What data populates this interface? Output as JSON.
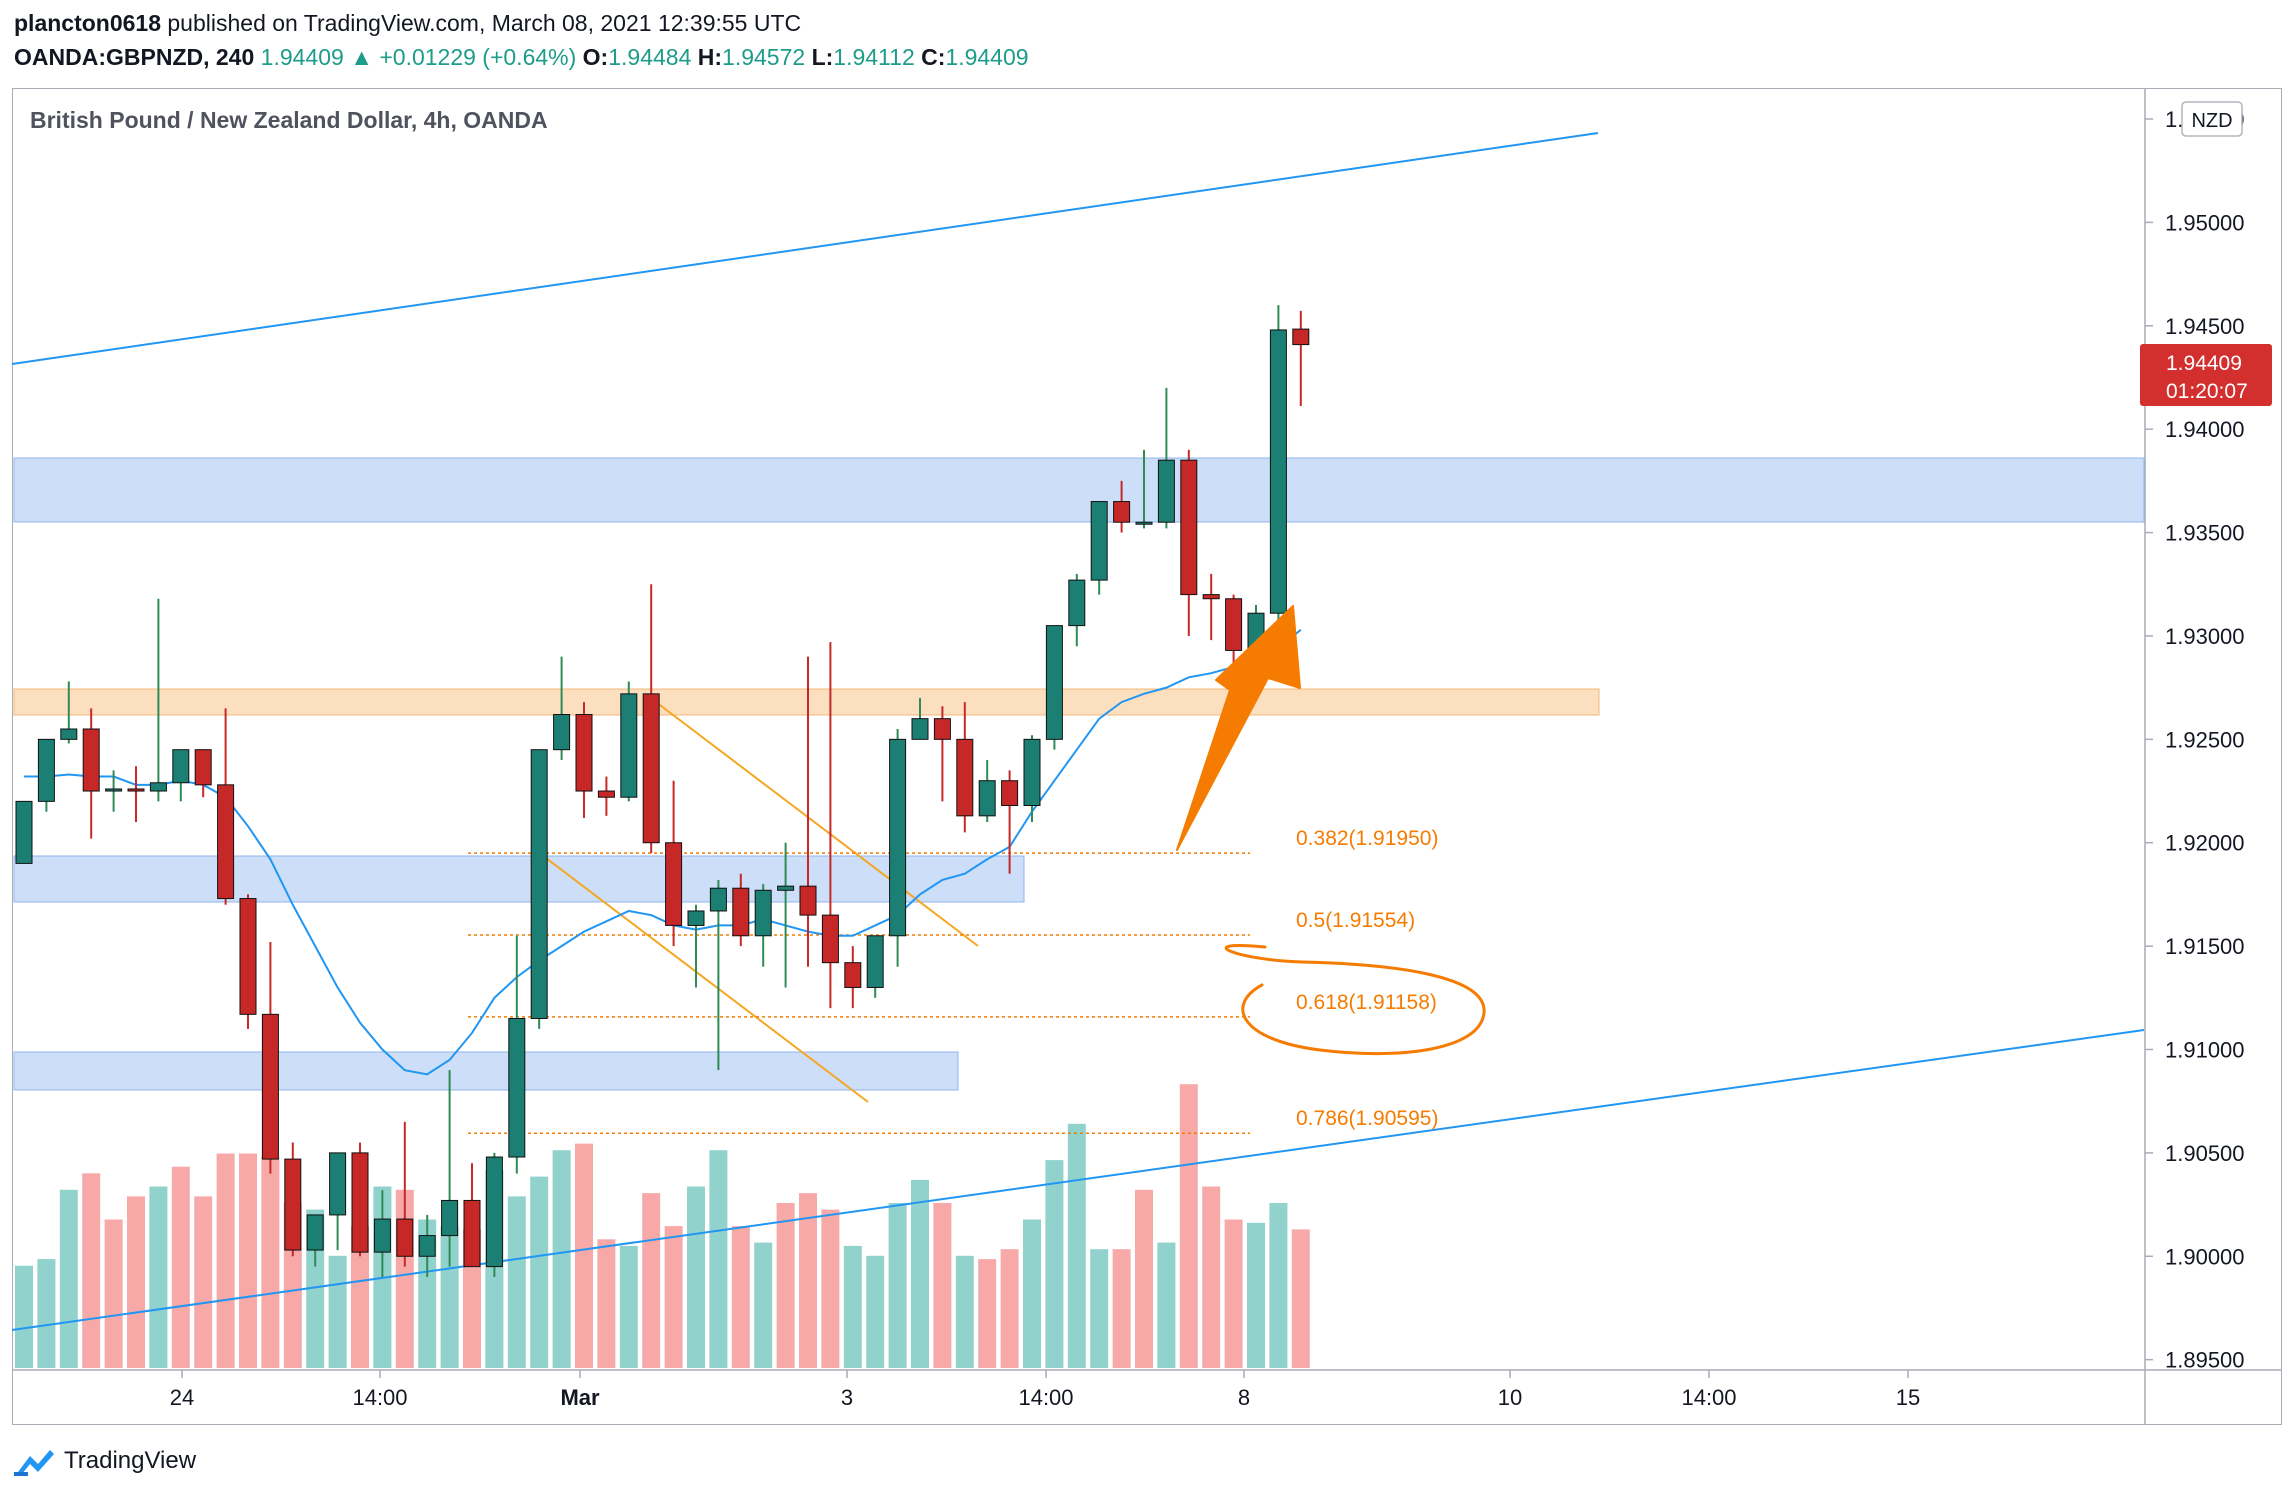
{
  "header": {
    "author": "plancton0618",
    "published_text": "published on TradingView.com, March 08, 2021 12:39:55 UTC",
    "symbol": "OANDA:GBPNZD, 240",
    "last": "1.94409",
    "change": "+0.01229 (+0.64%)",
    "o_label": "O:",
    "o_val": "1.94484",
    "h_label": "H:",
    "h_val": "1.94572",
    "l_label": "L:",
    "l_val": "1.94112",
    "c_label": "C:",
    "c_val": "1.94409"
  },
  "chart": {
    "title": "British Pound / New Zealand Dollar, 4h, OANDA",
    "currency": "NZD",
    "price_tag": "1.94409",
    "countdown": "01:20:07",
    "x_ticks": [
      "24",
      "14:00",
      "Mar",
      "3",
      "14:00",
      "8",
      "10",
      "14:00",
      "15"
    ],
    "fib_labels": [
      "0.382(1.91950)",
      "0.5(1.91554)",
      "0.618(1.91158)",
      "0.786(1.90595)"
    ],
    "colors": {
      "up": "#26a69a",
      "down": "#ef5350",
      "ma": "#2196f3",
      "fib": "#f57c00",
      "zone_blue": "#bbd3f5",
      "zone_orange": "#fcd9b4",
      "arrow": "#f57c00"
    }
  },
  "footer": {
    "brand": "TradingView"
  },
  "chart_data": {
    "type": "candlestick",
    "title": "British Pound / New Zealand Dollar, 4h, OANDA",
    "ylim": [
      1.8945,
      1.9565
    ],
    "y_ticks": [
      1.895,
      1.9,
      1.905,
      1.91,
      1.915,
      1.92,
      1.925,
      1.93,
      1.935,
      1.94,
      1.945,
      1.95,
      1.955
    ],
    "candles": [
      {
        "o": 1.919,
        "h": 1.922,
        "l": 1.919,
        "c": 1.922
      },
      {
        "o": 1.922,
        "h": 1.925,
        "l": 1.9215,
        "c": 1.925
      },
      {
        "o": 1.925,
        "h": 1.9278,
        "l": 1.9248,
        "c": 1.9255
      },
      {
        "o": 1.9255,
        "h": 1.9265,
        "l": 1.9202,
        "c": 1.9225
      },
      {
        "o": 1.9225,
        "h": 1.9235,
        "l": 1.9215,
        "c": 1.9226
      },
      {
        "o": 1.9226,
        "h": 1.9237,
        "l": 1.921,
        "c": 1.9225
      },
      {
        "o": 1.9225,
        "h": 1.9318,
        "l": 1.922,
        "c": 1.9229
      },
      {
        "o": 1.9229,
        "h": 1.924,
        "l": 1.922,
        "c": 1.9245
      },
      {
        "o": 1.9245,
        "h": 1.9243,
        "l": 1.9222,
        "c": 1.9228
      },
      {
        "o": 1.9228,
        "h": 1.9265,
        "l": 1.917,
        "c": 1.9173
      },
      {
        "o": 1.9173,
        "h": 1.9175,
        "l": 1.911,
        "c": 1.9117
      },
      {
        "o": 1.9117,
        "h": 1.9152,
        "l": 1.904,
        "c": 1.9047
      },
      {
        "o": 1.9047,
        "h": 1.9055,
        "l": 1.9,
        "c": 1.9003
      },
      {
        "o": 1.9003,
        "h": 1.902,
        "l": 1.8995,
        "c": 1.902
      },
      {
        "o": 1.902,
        "h": 1.905,
        "l": 1.9003,
        "c": 1.905
      },
      {
        "o": 1.905,
        "h": 1.9055,
        "l": 1.9,
        "c": 1.9002
      },
      {
        "o": 1.9002,
        "h": 1.9032,
        "l": 1.899,
        "c": 1.9018
      },
      {
        "o": 1.9018,
        "h": 1.9065,
        "l": 1.8995,
        "c": 1.9
      },
      {
        "o": 1.9,
        "h": 1.902,
        "l": 1.899,
        "c": 1.901
      },
      {
        "o": 1.901,
        "h": 1.909,
        "l": 1.8995,
        "c": 1.9027
      },
      {
        "o": 1.9027,
        "h": 1.9045,
        "l": 1.8998,
        "c": 1.8995
      },
      {
        "o": 1.8995,
        "h": 1.905,
        "l": 1.899,
        "c": 1.9048
      },
      {
        "o": 1.9048,
        "h": 1.9155,
        "l": 1.904,
        "c": 1.9115
      },
      {
        "o": 1.9115,
        "h": 1.9245,
        "l": 1.911,
        "c": 1.9245
      },
      {
        "o": 1.9245,
        "h": 1.929,
        "l": 1.924,
        "c": 1.9262
      },
      {
        "o": 1.9262,
        "h": 1.9268,
        "l": 1.9212,
        "c": 1.9225
      },
      {
        "o": 1.9225,
        "h": 1.9232,
        "l": 1.9213,
        "c": 1.9222
      },
      {
        "o": 1.9222,
        "h": 1.9278,
        "l": 1.922,
        "c": 1.9272
      },
      {
        "o": 1.9272,
        "h": 1.9325,
        "l": 1.9195,
        "c": 1.92
      },
      {
        "o": 1.92,
        "h": 1.923,
        "l": 1.915,
        "c": 1.916
      },
      {
        "o": 1.916,
        "h": 1.917,
        "l": 1.913,
        "c": 1.9167
      },
      {
        "o": 1.9167,
        "h": 1.9182,
        "l": 1.909,
        "c": 1.9178
      },
      {
        "o": 1.9178,
        "h": 1.9185,
        "l": 1.915,
        "c": 1.9155
      },
      {
        "o": 1.9155,
        "h": 1.918,
        "l": 1.914,
        "c": 1.9177
      },
      {
        "o": 1.9177,
        "h": 1.92,
        "l": 1.913,
        "c": 1.9179
      },
      {
        "o": 1.9179,
        "h": 1.929,
        "l": 1.914,
        "c": 1.9165
      },
      {
        "o": 1.9165,
        "h": 1.9297,
        "l": 1.912,
        "c": 1.9142
      },
      {
        "o": 1.9142,
        "h": 1.915,
        "l": 1.912,
        "c": 1.913
      },
      {
        "o": 1.913,
        "h": 1.9152,
        "l": 1.9125,
        "c": 1.9155
      },
      {
        "o": 1.9155,
        "h": 1.9255,
        "l": 1.914,
        "c": 1.925
      },
      {
        "o": 1.925,
        "h": 1.927,
        "l": 1.925,
        "c": 1.926
      },
      {
        "o": 1.926,
        "h": 1.9266,
        "l": 1.922,
        "c": 1.925
      },
      {
        "o": 1.925,
        "h": 1.9268,
        "l": 1.9205,
        "c": 1.9213
      },
      {
        "o": 1.9213,
        "h": 1.924,
        "l": 1.921,
        "c": 1.923
      },
      {
        "o": 1.923,
        "h": 1.9235,
        "l": 1.9185,
        "c": 1.9218
      },
      {
        "o": 1.9218,
        "h": 1.9252,
        "l": 1.921,
        "c": 1.925
      },
      {
        "o": 1.925,
        "h": 1.9305,
        "l": 1.9245,
        "c": 1.9305
      },
      {
        "o": 1.9305,
        "h": 1.933,
        "l": 1.9295,
        "c": 1.9327
      },
      {
        "o": 1.9327,
        "h": 1.9365,
        "l": 1.932,
        "c": 1.9365
      },
      {
        "o": 1.9365,
        "h": 1.9375,
        "l": 1.935,
        "c": 1.9355
      },
      {
        "o": 1.9355,
        "h": 1.939,
        "l": 1.9352,
        "c": 1.9355
      },
      {
        "o": 1.9355,
        "h": 1.942,
        "l": 1.9352,
        "c": 1.9385
      },
      {
        "o": 1.9385,
        "h": 1.939,
        "l": 1.93,
        "c": 1.932
      },
      {
        "o": 1.932,
        "h": 1.933,
        "l": 1.9298,
        "c": 1.9318
      },
      {
        "o": 1.9318,
        "h": 1.932,
        "l": 1.927,
        "c": 1.9293
      },
      {
        "o": 1.9293,
        "h": 1.9315,
        "l": 1.929,
        "c": 1.9311
      },
      {
        "o": 1.9311,
        "h": 1.946,
        "l": 1.9305,
        "c": 1.9448
      },
      {
        "o": 1.94484,
        "h": 1.94572,
        "l": 1.94112,
        "c": 1.94409
      }
    ],
    "ma": [
      1.9232,
      1.9232,
      1.9233,
      1.9232,
      1.9232,
      1.9228,
      1.9228,
      1.923,
      1.9228,
      1.9222,
      1.9208,
      1.9192,
      1.917,
      1.915,
      1.913,
      1.9113,
      1.91,
      1.909,
      1.9088,
      1.9095,
      1.9108,
      1.9125,
      1.9135,
      1.9143,
      1.915,
      1.9157,
      1.9162,
      1.9167,
      1.9165,
      1.916,
      1.9158,
      1.916,
      1.916,
      1.9163,
      1.916,
      1.9157,
      1.9155,
      1.9155,
      1.916,
      1.9165,
      1.9175,
      1.9182,
      1.9185,
      1.9192,
      1.9198,
      1.9215,
      1.923,
      1.9245,
      1.926,
      1.9268,
      1.9272,
      1.9275,
      1.928,
      1.9282,
      1.9285,
      1.9288,
      1.9294,
      1.9303
    ],
    "volume": [
      31,
      33,
      54,
      59,
      45,
      52,
      55,
      61,
      52,
      65,
      65,
      64,
      50,
      48,
      34,
      43,
      55,
      54,
      45,
      43,
      42,
      60,
      52,
      58,
      66,
      68,
      39,
      37,
      53,
      43,
      55,
      66,
      43,
      38,
      50,
      53,
      48,
      37,
      34,
      50,
      57,
      50,
      34,
      33,
      36,
      45,
      63,
      74,
      36,
      36,
      54,
      38,
      86,
      55,
      45,
      44,
      50,
      42
    ],
    "volume_up": [
      true,
      true,
      true,
      false,
      false,
      false,
      true,
      false,
      false,
      false,
      false,
      false,
      false,
      true,
      true,
      false,
      true,
      false,
      true,
      true,
      false,
      true,
      true,
      true,
      true,
      false,
      false,
      true,
      false,
      false,
      true,
      true,
      false,
      true,
      false,
      false,
      false,
      true,
      true,
      true,
      true,
      false,
      true,
      false,
      false,
      true,
      true,
      true,
      true,
      false,
      false,
      true,
      false,
      false,
      false,
      true,
      true,
      false
    ],
    "fib": [
      1.9195,
      1.91554,
      1.91158,
      1.90595
    ]
  }
}
